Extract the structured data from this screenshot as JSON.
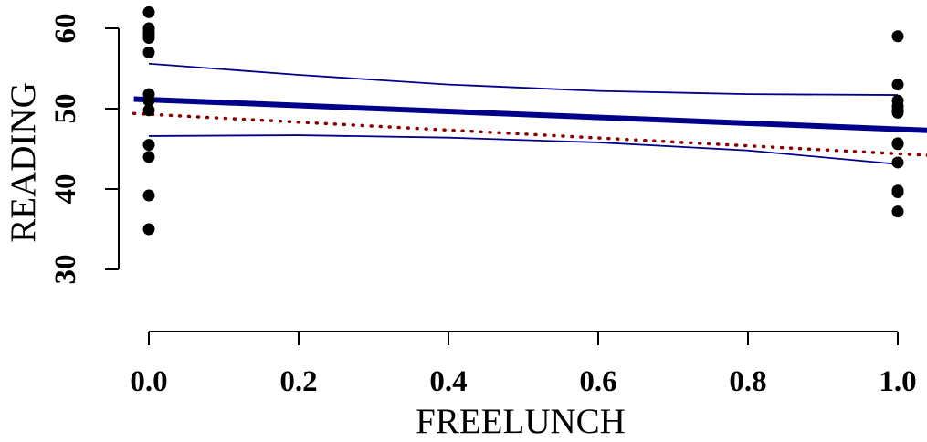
{
  "chart_data": {
    "type": "scatter",
    "title": "",
    "xlabel": "FREELUNCH",
    "ylabel": "READING",
    "xlim": [
      -0.02,
      1.04
    ],
    "ylim": [
      17,
      62
    ],
    "x_ticks": [
      "0.0",
      "0.2",
      "0.4",
      "0.6",
      "0.8",
      "1.0"
    ],
    "y_ticks": [
      "30",
      "40",
      "50",
      "60"
    ],
    "grid": false,
    "legend": "none",
    "colors": {
      "points": "#000000",
      "fit_line": "#00008b",
      "confidence_band": "#00008b",
      "dotted_line": "#8b0000"
    },
    "series": [
      {
        "kind": "points",
        "x": [
          0,
          0,
          0,
          0,
          0,
          0,
          0,
          0,
          0,
          0,
          0,
          0,
          0,
          1,
          1,
          1,
          1,
          1,
          1,
          1,
          1,
          1,
          1,
          1,
          1
        ],
        "y": [
          62,
          60,
          59.2,
          58.8,
          57,
          51.8,
          51,
          49.8,
          45.5,
          44,
          39.2,
          35,
          59.5,
          59,
          53,
          51,
          50.3,
          49.8,
          49.5,
          45.7,
          45.6,
          43.3,
          39.8,
          39.6,
          37.2
        ]
      },
      {
        "kind": "fit",
        "x": [
          -0.02,
          1.04
        ],
        "y": [
          51.2,
          47.3
        ]
      },
      {
        "kind": "band-upper",
        "x": [
          0,
          0.2,
          0.4,
          0.6,
          0.8,
          1.0
        ],
        "y": [
          55.6,
          54.2,
          53,
          52.2,
          51.8,
          51.7
        ]
      },
      {
        "kind": "band-lower",
        "x": [
          0,
          0.2,
          0.4,
          0.6,
          0.8,
          1.0
        ],
        "y": [
          46.6,
          46.7,
          46.4,
          45.8,
          44.8,
          43.1
        ]
      },
      {
        "kind": "dotted",
        "x": [
          -0.02,
          1.04
        ],
        "y": [
          49.4,
          44.2
        ]
      }
    ]
  }
}
